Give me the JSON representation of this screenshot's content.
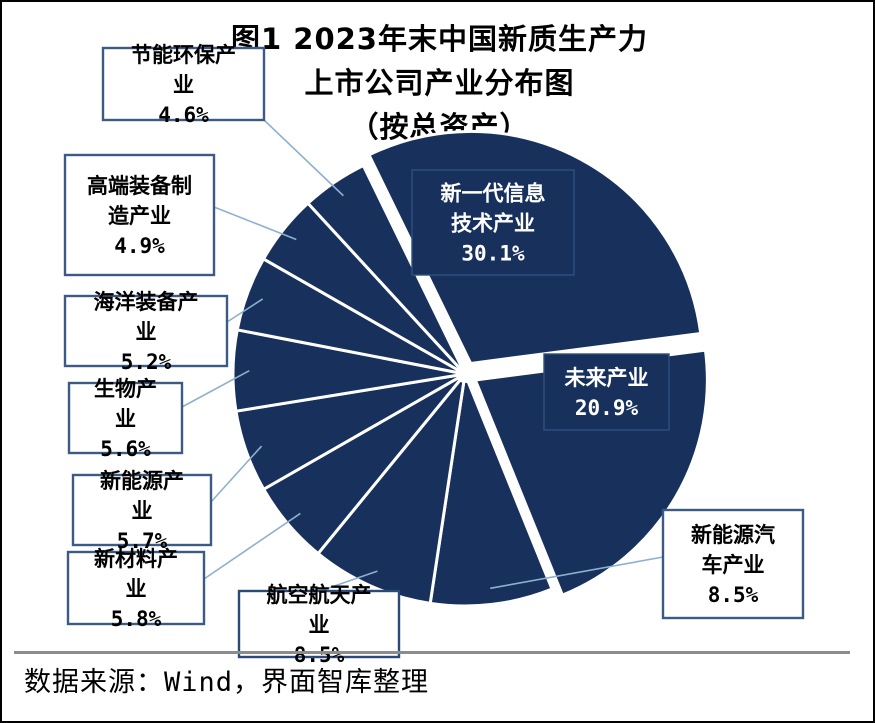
{
  "title": {
    "line1": "图1 2023年末中国新质生产力",
    "line2": "上市公司产业分布图",
    "line3": "（按总资产）"
  },
  "source": "数据来源：Wind，界面智库整理",
  "colors": {
    "slice": "#17305c",
    "slice_stroke": "#ffffff",
    "leader": "#8eb0cf",
    "label_border": "#3d5a85",
    "label_border_plain": "#2b4a78",
    "label_text_inside": "#ffffff",
    "label_text_outside": "#000000"
  },
  "chart_data": {
    "type": "pie",
    "unit": "%",
    "slices": [
      {
        "label": "新一代信息技术产业",
        "value": 30.1,
        "display": "30.1%",
        "exploded": true
      },
      {
        "label": "未来产业",
        "value": 20.9,
        "display": "20.9%",
        "exploded": true
      },
      {
        "label": "新能源汽车产业",
        "value": 8.5,
        "display": "8.5%",
        "exploded": false
      },
      {
        "label": "航空航天产业",
        "value": 8.5,
        "display": "8.5%",
        "exploded": false
      },
      {
        "label": "新材料产业",
        "value": 5.8,
        "display": "5.8%",
        "exploded": false
      },
      {
        "label": "新能源产业",
        "value": 5.7,
        "display": "5.7%",
        "exploded": false
      },
      {
        "label": "生物产业",
        "value": 5.6,
        "display": "5.6%",
        "exploded": false
      },
      {
        "label": "海洋装备产业",
        "value": 5.2,
        "display": "5.2%",
        "exploded": false
      },
      {
        "label": "高端装备制造产业",
        "value": 4.9,
        "display": "4.9%",
        "exploded": false
      },
      {
        "label": "节能环保产业",
        "value": 4.6,
        "display": "4.6%",
        "exploded": false
      }
    ]
  }
}
